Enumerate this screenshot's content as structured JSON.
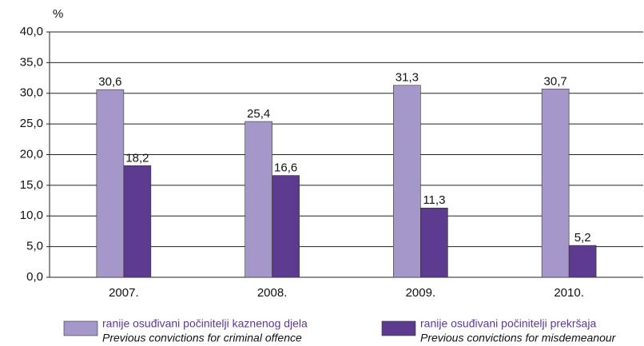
{
  "chart_data": {
    "type": "bar",
    "y_label": "%",
    "categories": [
      "2007.",
      "2008.",
      "2009.",
      "2010."
    ],
    "series": [
      {
        "name": "ranije osuđivani počinitelji kaznenog djela",
        "name_en": "Previous convictions for criminal offence",
        "color": "#a597c9",
        "values": [
          30.6,
          25.4,
          31.3,
          30.7
        ],
        "value_labels": [
          "30,6",
          "25,4",
          "31,3",
          "30,7"
        ]
      },
      {
        "name": "ranije osuđivani počinitelji prekršaja",
        "name_en": "Previous convictions for misdemeanour",
        "color": "#5c3a8f",
        "values": [
          18.2,
          16.6,
          11.3,
          5.2
        ],
        "value_labels": [
          "18,2",
          "16,6",
          "11,3",
          "5,2"
        ]
      }
    ],
    "ylim": [
      0,
      40
    ],
    "yticks": [
      {
        "value": 0,
        "label": "0,0"
      },
      {
        "value": 5,
        "label": "5,0"
      },
      {
        "value": 10,
        "label": "10,0"
      },
      {
        "value": 15,
        "label": "15,0"
      },
      {
        "value": 20,
        "label": "20,0"
      },
      {
        "value": 25,
        "label": "25,0"
      },
      {
        "value": 30,
        "label": "30,0"
      },
      {
        "value": 35,
        "label": "35,0"
      },
      {
        "value": 40,
        "label": "40,0"
      }
    ],
    "grid": true
  }
}
